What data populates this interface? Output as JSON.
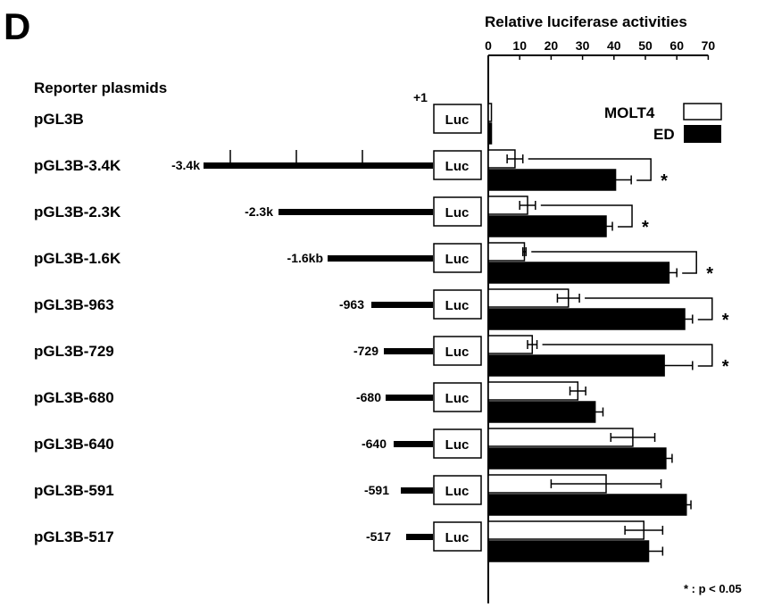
{
  "panel_letter": "D",
  "reporter_heading": "Reporter plasmids",
  "tss_label": "+1",
  "luc_label": "Luc",
  "significance_note": "* : p < 0.05",
  "star": "*",
  "colors": {
    "molt4_fill": "#ffffff",
    "ed_fill": "#000000",
    "stroke": "#000000"
  },
  "constructs": [
    {
      "name": "pGL3B",
      "end_label": "",
      "scale_ticks": false
    },
    {
      "name": "pGL3B-3.4K",
      "end_label": "-3.4k",
      "scale_ticks": true
    },
    {
      "name": "pGL3B-2.3K",
      "end_label": "-2.3k",
      "scale_ticks": false
    },
    {
      "name": "pGL3B-1.6K",
      "end_label": "-1.6kb",
      "scale_ticks": false
    },
    {
      "name": "pGL3B-963",
      "end_label": "-963",
      "scale_ticks": false
    },
    {
      "name": "pGL3B-729",
      "end_label": "-729",
      "scale_ticks": false
    },
    {
      "name": "pGL3B-680",
      "end_label": "-680",
      "scale_ticks": false
    },
    {
      "name": "pGL3B-640",
      "end_label": "-640",
      "scale_ticks": false
    },
    {
      "name": "pGL3B-591",
      "end_label": "-591",
      "scale_ticks": false
    },
    {
      "name": "pGL3B-517",
      "end_label": "-517",
      "scale_ticks": false
    }
  ],
  "chart_data": {
    "type": "bar",
    "orientation": "horizontal",
    "title": "Relative luciferase activities",
    "xlim": [
      0,
      70
    ],
    "x_ticks": [
      0,
      10,
      20,
      30,
      40,
      50,
      60,
      70
    ],
    "x_tick_labels": [
      "0",
      "10",
      "20",
      "30",
      "40",
      "50",
      "60",
      "70"
    ],
    "legend_position": "top-right",
    "categories": [
      "pGL3B",
      "pGL3B-3.4K",
      "pGL3B-2.3K",
      "pGL3B-1.6K",
      "pGL3B-963",
      "pGL3B-729",
      "pGL3B-680",
      "pGL3B-640",
      "pGL3B-591",
      "pGL3B-517"
    ],
    "series": [
      {
        "name": "MOLT4",
        "values": [
          1,
          8.5,
          12.5,
          11.5,
          25.5,
          14,
          28.5,
          46,
          37.5,
          49.5
        ],
        "errors": [
          0.3,
          2.5,
          2.5,
          0.5,
          3.5,
          1.5,
          2.5,
          7,
          17.5,
          6
        ]
      },
      {
        "name": "ED",
        "values": [
          1,
          40.5,
          37.5,
          57.5,
          62.5,
          56,
          34,
          56.5,
          63,
          51
        ],
        "errors": [
          0.3,
          5,
          2,
          2.5,
          2.5,
          9,
          2.5,
          2,
          1.5,
          4.5
        ]
      }
    ],
    "significant": [
      false,
      true,
      true,
      true,
      true,
      true,
      false,
      false,
      false,
      false
    ]
  }
}
